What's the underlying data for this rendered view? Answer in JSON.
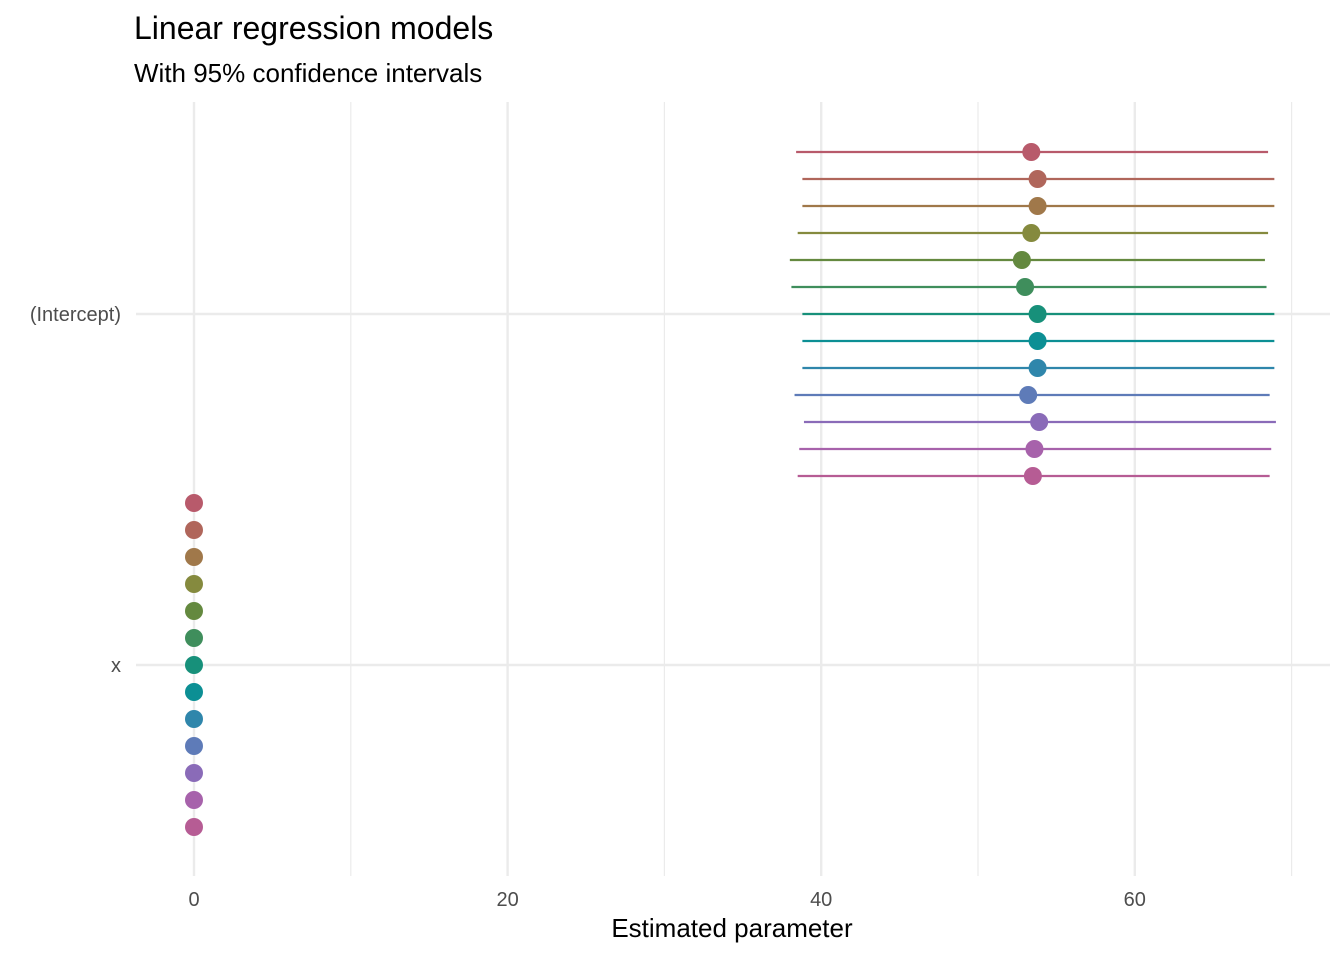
{
  "chart_data": {
    "type": "scatter",
    "title": "Linear regression models",
    "subtitle": "With 95% confidence intervals",
    "xlabel": "Estimated parameter",
    "ylabel": "",
    "xlim": [
      -5,
      72
    ],
    "x_ticks": [
      0,
      20,
      40,
      60
    ],
    "x_minor_ticks": [
      10,
      30,
      50,
      70
    ],
    "categories": [
      "(Intercept)",
      "x"
    ],
    "grid": true,
    "legend": "none",
    "series": [
      {
        "color": "#b85a6b",
        "values": [
          {
            "term": "(Intercept)",
            "estimate": 53.4,
            "low": 38.4,
            "high": 68.5
          },
          {
            "term": "x",
            "estimate": 0.0
          }
        ]
      },
      {
        "color": "#b0665b",
        "values": [
          {
            "term": "(Intercept)",
            "estimate": 53.8,
            "low": 38.8,
            "high": 68.9
          },
          {
            "term": "x",
            "estimate": 0.0
          }
        ]
      },
      {
        "color": "#a0784a",
        "values": [
          {
            "term": "(Intercept)",
            "estimate": 53.8,
            "low": 38.8,
            "high": 68.9
          },
          {
            "term": "x",
            "estimate": 0.0
          }
        ]
      },
      {
        "color": "#858a3e",
        "values": [
          {
            "term": "(Intercept)",
            "estimate": 53.4,
            "low": 38.5,
            "high": 68.5
          },
          {
            "term": "x",
            "estimate": 0.0
          }
        ]
      },
      {
        "color": "#64893f",
        "values": [
          {
            "term": "(Intercept)",
            "estimate": 52.8,
            "low": 38.0,
            "high": 68.3
          },
          {
            "term": "x",
            "estimate": 0.0
          }
        ]
      },
      {
        "color": "#3f8e5c",
        "values": [
          {
            "term": "(Intercept)",
            "estimate": 53.0,
            "low": 38.1,
            "high": 68.4
          },
          {
            "term": "x",
            "estimate": 0.0
          }
        ]
      },
      {
        "color": "#17907a",
        "values": [
          {
            "term": "(Intercept)",
            "estimate": 53.8,
            "low": 38.8,
            "high": 68.9
          },
          {
            "term": "x",
            "estimate": 0.0
          }
        ]
      },
      {
        "color": "#0c8f94",
        "values": [
          {
            "term": "(Intercept)",
            "estimate": 53.8,
            "low": 38.8,
            "high": 68.9
          },
          {
            "term": "x",
            "estimate": 0.0
          }
        ]
      },
      {
        "color": "#2f86ab",
        "values": [
          {
            "term": "(Intercept)",
            "estimate": 53.8,
            "low": 38.8,
            "high": 68.9
          },
          {
            "term": "x",
            "estimate": 0.0
          }
        ]
      },
      {
        "color": "#5e7bb8",
        "values": [
          {
            "term": "(Intercept)",
            "estimate": 53.2,
            "low": 38.3,
            "high": 68.6
          },
          {
            "term": "x",
            "estimate": 0.0
          }
        ]
      },
      {
        "color": "#8a6bb8",
        "values": [
          {
            "term": "(Intercept)",
            "estimate": 53.9,
            "low": 38.9,
            "high": 69.0
          },
          {
            "term": "x",
            "estimate": 0.0
          }
        ]
      },
      {
        "color": "#a762ab",
        "values": [
          {
            "term": "(Intercept)",
            "estimate": 53.6,
            "low": 38.6,
            "high": 68.7
          },
          {
            "term": "x",
            "estimate": 0.0
          }
        ]
      },
      {
        "color": "#b65c94",
        "values": [
          {
            "term": "(Intercept)",
            "estimate": 53.5,
            "low": 38.5,
            "high": 68.6
          },
          {
            "term": "x",
            "estimate": 0.0
          }
        ]
      }
    ]
  }
}
